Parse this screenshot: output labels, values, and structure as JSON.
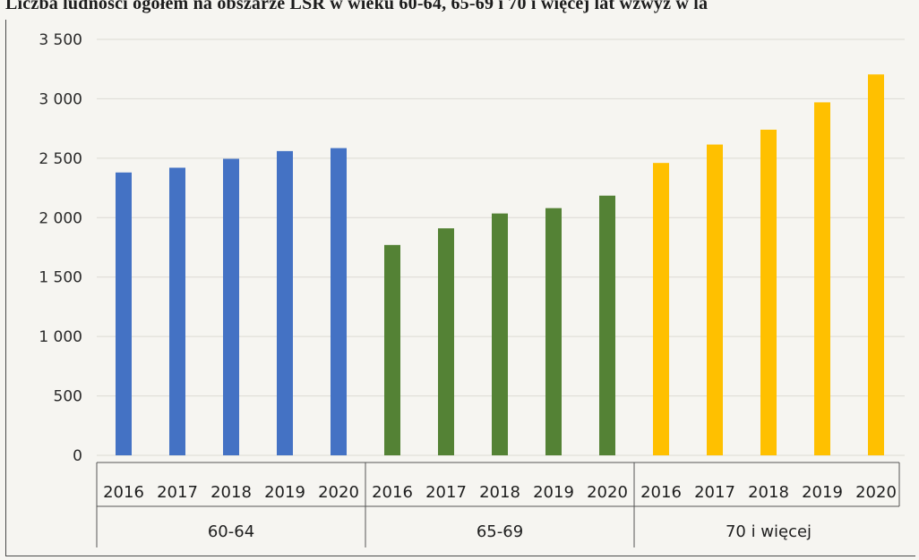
{
  "title": "Liczba ludności ogółem na obszarze LSR w wieku 60-64, 65-69 i 70 i więcej lat wzwyż w la",
  "chart_data": {
    "type": "bar",
    "title": "Liczba ludności ogółem na obszarze LSR w wieku 60-64, 65-69 i 70 i więcej lat wzwyż w la",
    "xlabel": "",
    "ylabel": "",
    "ylim": [
      0,
      3500
    ],
    "yticks": [
      0,
      500,
      1000,
      1500,
      2000,
      2500,
      3000,
      3500
    ],
    "ytick_labels": [
      "0",
      "500",
      "1 000",
      "1 500",
      "2 000",
      "2 500",
      "3 000",
      "3 500"
    ],
    "grid": true,
    "legend": "none",
    "groups": [
      {
        "name": "60-64",
        "color": "#4472c4",
        "categories": [
          "2016",
          "2017",
          "2018",
          "2019",
          "2020"
        ],
        "values": [
          2380,
          2420,
          2495,
          2560,
          2585
        ]
      },
      {
        "name": "65-69",
        "color": "#548235",
        "categories": [
          "2016",
          "2017",
          "2018",
          "2019",
          "2020"
        ],
        "values": [
          1770,
          1910,
          2035,
          2080,
          2185
        ]
      },
      {
        "name": "70 i więcej",
        "color": "#ffc000",
        "categories": [
          "2016",
          "2017",
          "2018",
          "2019",
          "2020"
        ],
        "values": [
          2460,
          2615,
          2740,
          2970,
          3205
        ]
      }
    ]
  }
}
